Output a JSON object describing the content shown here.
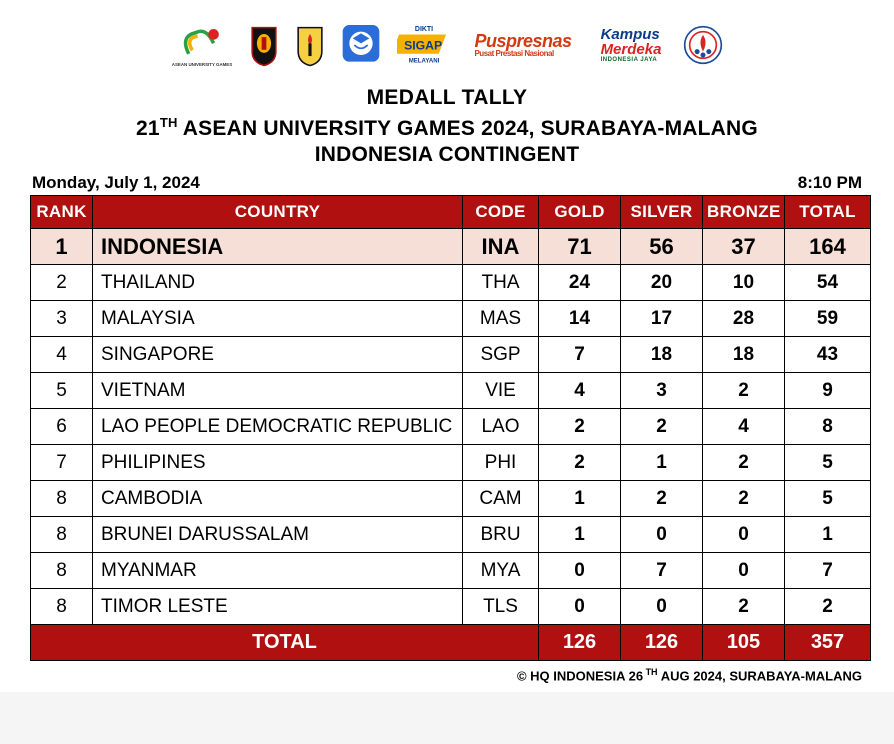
{
  "header": {
    "tally_title": "MEDALL TALLY",
    "event_prefix": "21",
    "event_ordinal": "TH",
    "event_main": " ASEAN UNIVERSITY GAMES 2024, SURABAYA-MALANG",
    "contingent": "INDONESIA CONTINGENT"
  },
  "meta": {
    "date": "Monday, July 1, 2024",
    "time": "8:10 PM"
  },
  "columns": {
    "rank": "RANK",
    "country": "COUNTRY",
    "code": "CODE",
    "gold": "GOLD",
    "silver": "SILVER",
    "bronze": "BRONZE",
    "total": "TOTAL"
  },
  "rows": [
    {
      "rank": "1",
      "country": "INDONESIA",
      "code": "INA",
      "gold": "71",
      "silver": "56",
      "bronze": "37",
      "total": "164",
      "highlight": true
    },
    {
      "rank": "2",
      "country": "THAILAND",
      "code": "THA",
      "gold": "24",
      "silver": "20",
      "bronze": "10",
      "total": "54"
    },
    {
      "rank": "3",
      "country": "MALAYSIA",
      "code": "MAS",
      "gold": "14",
      "silver": "17",
      "bronze": "28",
      "total": "59"
    },
    {
      "rank": "4",
      "country": "SINGAPORE",
      "code": "SGP",
      "gold": "7",
      "silver": "18",
      "bronze": "18",
      "total": "43"
    },
    {
      "rank": "5",
      "country": "VIETNAM",
      "code": "VIE",
      "gold": "4",
      "silver": "3",
      "bronze": "2",
      "total": "9"
    },
    {
      "rank": "6",
      "country": "LAO PEOPLE DEMOCRATIC REPUBLIC",
      "code": "LAO",
      "gold": "2",
      "silver": "2",
      "bronze": "4",
      "total": "8"
    },
    {
      "rank": "7",
      "country": "PHILIPINES",
      "code": "PHI",
      "gold": "2",
      "silver": "1",
      "bronze": "2",
      "total": "5"
    },
    {
      "rank": "8",
      "country": "CAMBODIA",
      "code": "CAM",
      "gold": "1",
      "silver": "2",
      "bronze": "2",
      "total": "5"
    },
    {
      "rank": "8",
      "country": "BRUNEI DARUSSALAM",
      "code": "BRU",
      "gold": "1",
      "silver": "0",
      "bronze": "0",
      "total": "1"
    },
    {
      "rank": "8",
      "country": "MYANMAR",
      "code": "MYA",
      "gold": "0",
      "silver": "7",
      "bronze": "0",
      "total": "7"
    },
    {
      "rank": "8",
      "country": "TIMOR LESTE",
      "code": "TLS",
      "gold": "0",
      "silver": "0",
      "bronze": "2",
      "total": "2"
    }
  ],
  "totals": {
    "label": "TOTAL",
    "gold": "126",
    "silver": "126",
    "bronze": "105",
    "total": "357"
  },
  "footer": {
    "prefix": "©  HQ INDONESIA 26",
    "ordinal": " TH",
    "suffix": " AUG 2024, SURABAYA-MALANG"
  },
  "colors": {
    "header_bg": "#b01010",
    "header_fg": "#ffffff",
    "highlight_bg": "#f6dfd7",
    "border": "#000000"
  },
  "logos": {
    "aug": "asean-university-games-logo",
    "shield1": "university-shield-logo",
    "shield2": "university-torch-logo",
    "dikti": "dikti-logo",
    "sigap_top": "DIKTI",
    "sigap_main": "SIGAP",
    "sigap_sub": "MELAYANI",
    "puspresnas_main": "Puspresnas",
    "puspresnas_sub": "Pusat Prestasi Nasional",
    "kampus_top": "Kampus",
    "kampus_mid": "Merdeka",
    "kampus_sub": "INDONESIA JAYA",
    "koni": "koni-logo"
  }
}
